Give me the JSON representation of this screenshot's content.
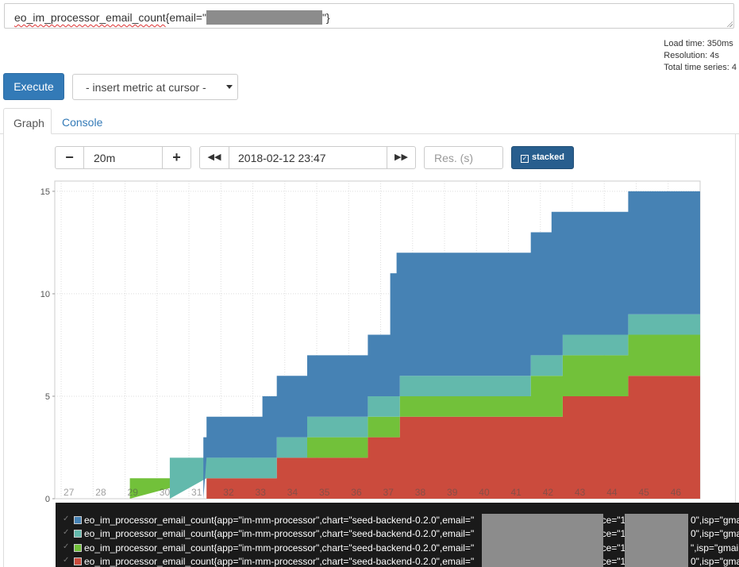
{
  "query": {
    "prefix": "eo_im_processor_email_count",
    "before_mask": "{email=\"",
    "after_mask": "\"}"
  },
  "stats": {
    "load_time": "Load time: 350ms",
    "resolution": "Resolution: 4s",
    "total_series": "Total time series: 4"
  },
  "toolbar": {
    "execute_label": "Execute",
    "metric_select_label": "- insert metric at cursor -"
  },
  "tabs": [
    {
      "label": "Graph",
      "active": true
    },
    {
      "label": "Console",
      "active": false
    }
  ],
  "controls": {
    "minus_label": "−",
    "range_value": "20m",
    "plus_label": "+",
    "back_label": "◀◀",
    "end_value": "2018-02-12 23:47",
    "forward_label": "▶▶",
    "res_placeholder": "Res. (s)",
    "stacked_label": "stacked"
  },
  "chart_data": {
    "type": "area",
    "stacked": true,
    "x_tick_labels": [
      "27",
      "28",
      "29",
      "30",
      "31",
      "32",
      "33",
      "34",
      "35",
      "36",
      "37",
      "38",
      "39",
      "40",
      "41",
      "42",
      "43",
      "44",
      "45",
      "46"
    ],
    "x_range": [
      26.8,
      47.0
    ],
    "y_ticks": [
      0,
      5,
      10,
      15
    ],
    "ylim": [
      0,
      15.5
    ],
    "grid": true,
    "series": [
      {
        "color": "#cb4b3d",
        "points": [
          [
            31.55,
            1
          ],
          [
            33.75,
            1
          ],
          [
            33.75,
            2
          ],
          [
            36.6,
            2
          ],
          [
            36.6,
            3
          ],
          [
            37.6,
            3
          ],
          [
            37.6,
            4
          ],
          [
            42.7,
            4
          ],
          [
            42.7,
            5
          ],
          [
            44.75,
            5
          ],
          [
            44.75,
            6
          ],
          [
            47.0,
            6
          ]
        ]
      },
      {
        "color": "#72c13a",
        "points": [
          [
            29.15,
            1
          ],
          [
            31.55,
            1
          ],
          [
            31.55,
            1
          ],
          [
            33.75,
            1
          ],
          [
            33.75,
            2
          ],
          [
            34.7,
            2
          ],
          [
            34.7,
            3
          ],
          [
            36.6,
            3
          ],
          [
            36.6,
            4
          ],
          [
            37.6,
            4
          ],
          [
            37.6,
            5
          ],
          [
            41.7,
            5
          ],
          [
            41.7,
            6
          ],
          [
            42.7,
            6
          ],
          [
            42.7,
            7
          ],
          [
            44.75,
            7
          ],
          [
            44.75,
            8
          ],
          [
            47.0,
            8
          ]
        ]
      },
      {
        "color": "#63b9ac",
        "points": [
          [
            30.4,
            2
          ],
          [
            31.55,
            2
          ],
          [
            31.55,
            2
          ],
          [
            33.75,
            2
          ],
          [
            33.75,
            3
          ],
          [
            34.7,
            3
          ],
          [
            34.7,
            4
          ],
          [
            36.6,
            4
          ],
          [
            36.6,
            5
          ],
          [
            37.6,
            5
          ],
          [
            37.6,
            6
          ],
          [
            41.7,
            6
          ],
          [
            41.7,
            7
          ],
          [
            42.7,
            7
          ],
          [
            42.7,
            8
          ],
          [
            44.75,
            8
          ],
          [
            44.75,
            9
          ],
          [
            47.0,
            9
          ]
        ]
      },
      {
        "color": "#4682b4",
        "points": [
          [
            31.45,
            3
          ],
          [
            31.55,
            3
          ],
          [
            31.55,
            4
          ],
          [
            33.3,
            4
          ],
          [
            33.3,
            5
          ],
          [
            33.75,
            5
          ],
          [
            33.75,
            6
          ],
          [
            34.7,
            6
          ],
          [
            34.7,
            7
          ],
          [
            36.6,
            7
          ],
          [
            36.6,
            8
          ],
          [
            37.3,
            8
          ],
          [
            37.3,
            11
          ],
          [
            37.5,
            11
          ],
          [
            37.5,
            12
          ],
          [
            41.7,
            12
          ],
          [
            41.7,
            13
          ],
          [
            42.35,
            13
          ],
          [
            42.35,
            14
          ],
          [
            44.75,
            14
          ],
          [
            44.75,
            15
          ],
          [
            47.0,
            15
          ]
        ]
      }
    ]
  },
  "legend": [
    {
      "color": "#4682b4",
      "metric": "eo_im_processor_email_count{app=\"im-mm-processor\",chart=\"seed-backend-0.2.0\",email=\"",
      "mid": "\",instance=\"1",
      "tail": "0\",isp=\"gma"
    },
    {
      "color": "#63b9ac",
      "metric": "eo_im_processor_email_count{app=\"im-mm-processor\",chart=\"seed-backend-0.2.0\",email=\"",
      "mid": "\",instance=\"1",
      "tail": "0\",isp=\"gma"
    },
    {
      "color": "#72c13a",
      "metric": "eo_im_processor_email_count{app=\"im-mm-processor\",chart=\"seed-backend-0.2.0\",email=\"",
      "mid": "\",instance=\"1",
      "tail": "\",isp=\"gmail"
    },
    {
      "color": "#cb4b3d",
      "metric": "eo_im_processor_email_count{app=\"im-mm-processor\",chart=\"seed-backend-0.2.0\",email=\"",
      "mid": "\",instance=\"1",
      "tail": "0\",isp=\"gma"
    }
  ]
}
